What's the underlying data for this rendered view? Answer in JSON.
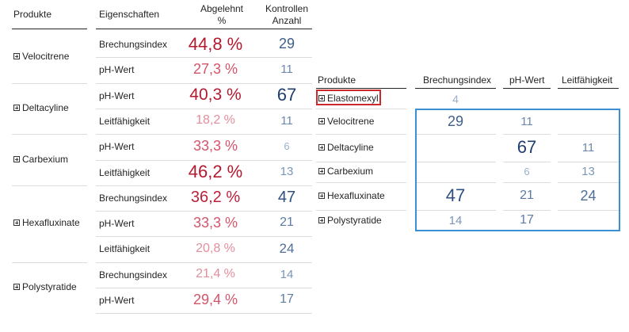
{
  "left_table": {
    "headers": {
      "product": "Produkte",
      "property": "Eigenschaften",
      "rejected_line1": "Abgelehnt",
      "rejected_line2": "%",
      "count_line1": "Kontrollen",
      "count_line2": "Anzahl"
    },
    "groups": [
      {
        "product": "Velocitrene",
        "rows": [
          {
            "property": "Brechungsindex",
            "rejected": "44,8 %",
            "count": "29"
          },
          {
            "property": "pH-Wert",
            "rejected": "27,3 %",
            "count": "11"
          }
        ]
      },
      {
        "product": "Deltacyline",
        "rows": [
          {
            "property": "pH-Wert",
            "rejected": "40,3 %",
            "count": "67"
          },
          {
            "property": "Leitfähigkeit",
            "rejected": "18,2 %",
            "count": "11"
          }
        ]
      },
      {
        "product": "Carbexium",
        "rows": [
          {
            "property": "pH-Wert",
            "rejected": "33,3 %",
            "count": "6"
          },
          {
            "property": "Leitfähigkeit",
            "rejected": "46,2 %",
            "count": "13"
          }
        ]
      },
      {
        "product": "Hexafluxinate",
        "rows": [
          {
            "property": "Brechungsindex",
            "rejected": "36,2 %",
            "count": "47"
          },
          {
            "property": "pH-Wert",
            "rejected": "33,3 %",
            "count": "21"
          },
          {
            "property": "Leitfähigkeit",
            "rejected": "20,8 %",
            "count": "24"
          }
        ]
      },
      {
        "product": "Polystyratide",
        "rows": [
          {
            "property": "Brechungsindex",
            "rejected": "21,4 %",
            "count": "14"
          },
          {
            "property": "pH-Wert",
            "rejected": "29,4 %",
            "count": "17"
          }
        ]
      }
    ]
  },
  "matrix": {
    "headers": {
      "product": "Produkte",
      "col1": "Brechungsindex",
      "col2": "pH-Wert",
      "col3": "Leitfähigkeit"
    },
    "rows": [
      {
        "product": "Elastomexyl",
        "v1": "4",
        "v2": "",
        "v3": ""
      },
      {
        "product": "Velocitrene",
        "v1": "29",
        "v2": "11",
        "v3": ""
      },
      {
        "product": "Deltacyline",
        "v1": "",
        "v2": "67",
        "v3": "11"
      },
      {
        "product": "Carbexium",
        "v1": "",
        "v2": "6",
        "v3": "13"
      },
      {
        "product": "Hexafluxinate",
        "v1": "47",
        "v2": "21",
        "v3": "24"
      },
      {
        "product": "Polystyratide",
        "v1": "14",
        "v2": "17",
        "v3": ""
      }
    ]
  },
  "colors": {
    "selection_red": "#cc2a2a",
    "selection_blue": "#3b8fd4"
  }
}
